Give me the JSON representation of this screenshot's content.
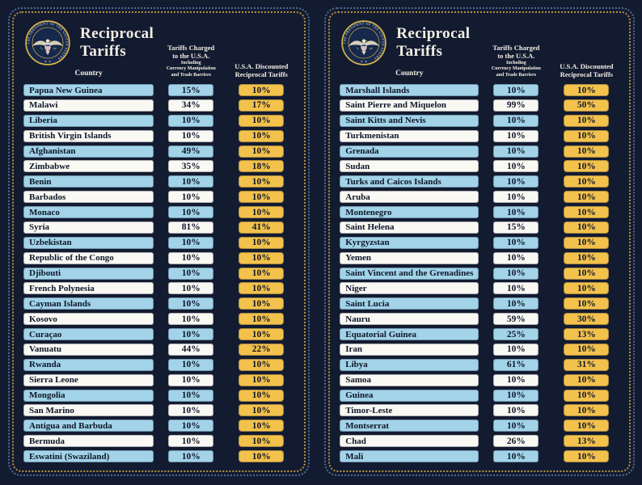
{
  "panel": {
    "title": "Reciprocal Tariffs",
    "country_header": "Country",
    "charged_header_line1": "Tariffs Charged",
    "charged_header_line2": "to the U.S.A.",
    "charged_sub_line1": "Including",
    "charged_sub_line2": "Currency Manipulation",
    "charged_sub_line3": "and Trade Barriers",
    "discounted_header_line1": "U.S.A. Discounted",
    "discounted_header_line2": "Reciprocal Tariffs",
    "seal_text": "SEAL OF THE PRESIDENT OF THE UNITED STATES",
    "seal_stars": "★ · ★"
  },
  "colors": {
    "background": "#131b31",
    "row_blue": "#a2d3e8",
    "row_white": "#f9f8f3",
    "gold": "#f3c24d",
    "text_dark": "#0e1628",
    "header_text": "#f3efe3",
    "border_gold": "#b98f3c",
    "border_blue": "#4e6c94",
    "seal_ring": "#d8b54a"
  },
  "chart_data": [
    {
      "type": "table",
      "title": "Reciprocal Tariffs",
      "columns": [
        "Country",
        "Tariffs Charged to the U.S.A. Including Currency Manipulation and Trade Barriers",
        "U.S.A. Discounted Reciprocal Tariffs"
      ],
      "rows": [
        [
          "Papua New Guinea",
          "15%",
          "10%"
        ],
        [
          "Malawi",
          "34%",
          "17%"
        ],
        [
          "Liberia",
          "10%",
          "10%"
        ],
        [
          "British Virgin Islands",
          "10%",
          "10%"
        ],
        [
          "Afghanistan",
          "49%",
          "10%"
        ],
        [
          "Zimbabwe",
          "35%",
          "18%"
        ],
        [
          "Benin",
          "10%",
          "10%"
        ],
        [
          "Barbados",
          "10%",
          "10%"
        ],
        [
          "Monaco",
          "10%",
          "10%"
        ],
        [
          "Syria",
          "81%",
          "41%"
        ],
        [
          "Uzbekistan",
          "10%",
          "10%"
        ],
        [
          "Republic of the Congo",
          "10%",
          "10%"
        ],
        [
          "Djibouti",
          "10%",
          "10%"
        ],
        [
          "French Polynesia",
          "10%",
          "10%"
        ],
        [
          "Cayman Islands",
          "10%",
          "10%"
        ],
        [
          "Kosovo",
          "10%",
          "10%"
        ],
        [
          "Curaçao",
          "10%",
          "10%"
        ],
        [
          "Vanuatu",
          "44%",
          "22%"
        ],
        [
          "Rwanda",
          "10%",
          "10%"
        ],
        [
          "Sierra Leone",
          "10%",
          "10%"
        ],
        [
          "Mongolia",
          "10%",
          "10%"
        ],
        [
          "San Marino",
          "10%",
          "10%"
        ],
        [
          "Antigua and Barbuda",
          "10%",
          "10%"
        ],
        [
          "Bermuda",
          "10%",
          "10%"
        ],
        [
          "Eswatini (Swaziland)",
          "10%",
          "10%"
        ]
      ]
    },
    {
      "type": "table",
      "title": "Reciprocal Tariffs",
      "columns": [
        "Country",
        "Tariffs Charged to the U.S.A. Including Currency Manipulation and Trade Barriers",
        "U.S.A. Discounted Reciprocal Tariffs"
      ],
      "rows": [
        [
          "Marshall Islands",
          "10%",
          "10%"
        ],
        [
          "Saint Pierre and Miquelon",
          "99%",
          "50%"
        ],
        [
          "Saint Kitts and Nevis",
          "10%",
          "10%"
        ],
        [
          "Turkmenistan",
          "10%",
          "10%"
        ],
        [
          "Grenada",
          "10%",
          "10%"
        ],
        [
          "Sudan",
          "10%",
          "10%"
        ],
        [
          "Turks and Caicos Islands",
          "10%",
          "10%"
        ],
        [
          "Aruba",
          "10%",
          "10%"
        ],
        [
          "Montenegro",
          "10%",
          "10%"
        ],
        [
          "Saint Helena",
          "15%",
          "10%"
        ],
        [
          "Kyrgyzstan",
          "10%",
          "10%"
        ],
        [
          "Yemen",
          "10%",
          "10%"
        ],
        [
          "Saint Vincent and the Grenadines",
          "10%",
          "10%"
        ],
        [
          "Niger",
          "10%",
          "10%"
        ],
        [
          "Saint Lucia",
          "10%",
          "10%"
        ],
        [
          "Nauru",
          "59%",
          "30%"
        ],
        [
          "Equatorial Guinea",
          "25%",
          "13%"
        ],
        [
          "Iran",
          "10%",
          "10%"
        ],
        [
          "Libya",
          "61%",
          "31%"
        ],
        [
          "Samoa",
          "10%",
          "10%"
        ],
        [
          "Guinea",
          "10%",
          "10%"
        ],
        [
          "Timor-Leste",
          "10%",
          "10%"
        ],
        [
          "Montserrat",
          "10%",
          "10%"
        ],
        [
          "Chad",
          "26%",
          "13%"
        ],
        [
          "Mali",
          "10%",
          "10%"
        ]
      ]
    }
  ]
}
